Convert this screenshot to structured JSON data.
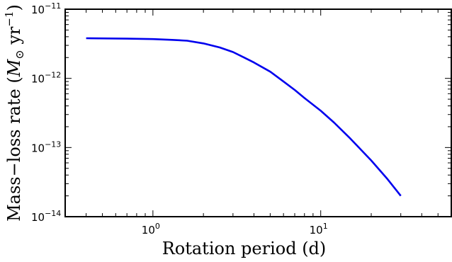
{
  "chart_data": {
    "type": "line",
    "xlabel": "Rotation period (d)",
    "ylabel": "Mass−loss rate (M⊙ yr⁻¹)",
    "ylabel_parts": {
      "text": "Mass−loss rate (",
      "symbol": "M",
      "subscript": "⊙",
      "unit": " yr",
      "exponent": "−1",
      "close": ")"
    },
    "x_scale": "log",
    "y_scale": "log",
    "xlim": [
      0.3,
      60
    ],
    "ylim": [
      1e-14,
      1e-11
    ],
    "x_ticks": [
      {
        "value": 1,
        "base": "10",
        "exp": "0"
      },
      {
        "value": 10,
        "base": "10",
        "exp": "1"
      }
    ],
    "y_ticks": [
      {
        "value": 1e-14,
        "base": "10",
        "exp": "−14"
      },
      {
        "value": 1e-13,
        "base": "10",
        "exp": "−13"
      },
      {
        "value": 1e-12,
        "base": "10",
        "exp": "−12"
      },
      {
        "value": 1e-11,
        "base": "10",
        "exp": "−11"
      }
    ],
    "grid": false,
    "line_color": "#0000ee",
    "series": [
      {
        "x": [
          0.4,
          0.7,
          1.0,
          1.3,
          1.6,
          2.0,
          2.5,
          3.0,
          3.5,
          4.0,
          5.0,
          6.0,
          7.0,
          8.0,
          10.0,
          12.0,
          15.0,
          20.0,
          25.0,
          30.0
        ],
        "y": [
          3.8e-12,
          3.75e-12,
          3.7e-12,
          3.6e-12,
          3.5e-12,
          3.2e-12,
          2.8e-12,
          2.4e-12,
          2e-12,
          1.7e-12,
          1.25e-12,
          9e-13,
          6.8e-13,
          5.2e-13,
          3.4e-13,
          2.3e-13,
          1.35e-13,
          6.5e-14,
          3.5e-14,
          2e-14
        ]
      }
    ]
  }
}
